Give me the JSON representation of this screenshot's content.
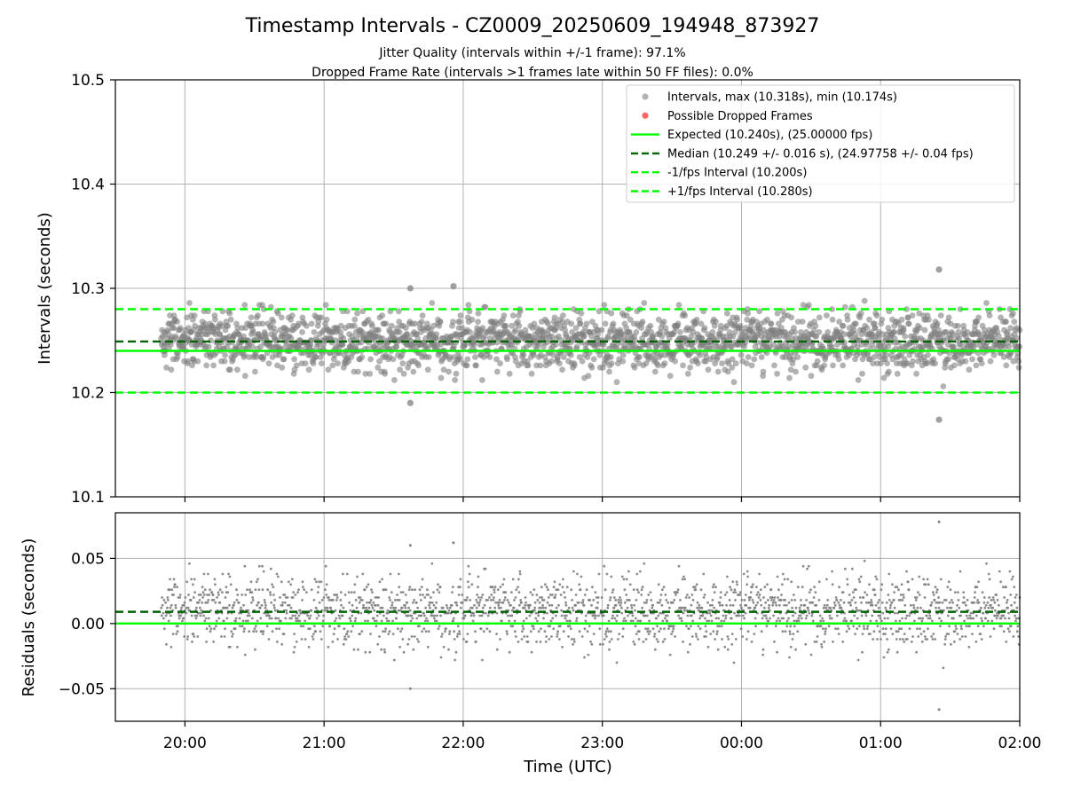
{
  "chart_data": [
    {
      "type": "scatter",
      "title": "Timestamp Intervals - CZ0009_20250609_194948_873927",
      "subtitle_lines": [
        "Jitter Quality (intervals within +/-1 frame): 97.1%",
        "Dropped Frame Rate (intervals >1 frames late within 50 FF files): 0.0%"
      ],
      "ylabel": "Intervals (seconds)",
      "xlabel": "",
      "ylim": [
        10.1,
        10.5
      ],
      "yticks": [
        10.1,
        10.2,
        10.3,
        10.4,
        10.5
      ],
      "ytick_labels": [
        "10.1",
        "10.2",
        "10.3",
        "10.4",
        "10.5"
      ],
      "xlim_hours": [
        19.5,
        26.0
      ],
      "xticks_hours": [
        20,
        21,
        22,
        23,
        24,
        25,
        26
      ],
      "xtick_labels": [
        "20:00",
        "21:00",
        "22:00",
        "23:00",
        "00:00",
        "01:00",
        "02:00"
      ],
      "grid": true,
      "legend_position": "top-right",
      "legend": [
        {
          "label": "Intervals, max (10.318s), min (10.174s)",
          "marker": "circle",
          "color": "#808080"
        },
        {
          "label": "Possible Dropped Frames",
          "marker": "circle",
          "color": "#ff0000"
        },
        {
          "label": "Expected (10.240s), (25.00000 fps)",
          "marker": "solid-line",
          "color": "#00ff00"
        },
        {
          "label": "Median (10.249 +/- 0.016 s), (24.97758 +/- 0.04 fps)",
          "marker": "dashed-line",
          "color": "#006400"
        },
        {
          "label": "-1/fps Interval (10.200s)",
          "marker": "dashed-line",
          "color": "#00ff00"
        },
        {
          "label": "+1/fps Interval (10.280s)",
          "marker": "dashed-line",
          "color": "#00ff00"
        }
      ],
      "reference_lines": {
        "expected": 10.24,
        "median": 10.249,
        "minus_one_frame": 10.2,
        "plus_one_frame": 10.28
      },
      "series": [
        {
          "name": "Intervals",
          "data_range_hours": [
            19.83,
            26.0
          ],
          "point_count": 2170,
          "max": 10.318,
          "max_time_hours": 25.42,
          "min": 10.174,
          "min_time_hours": 25.42,
          "median": 10.249,
          "std": 0.016,
          "notable_points": [
            {
              "x": 21.62,
              "y": 10.3
            },
            {
              "x": 21.62,
              "y": 10.19
            },
            {
              "x": 21.93,
              "y": 10.302
            },
            {
              "x": 25.42,
              "y": 10.318
            },
            {
              "x": 25.42,
              "y": 10.174
            }
          ]
        }
      ]
    },
    {
      "type": "scatter",
      "ylabel": "Residuals (seconds)",
      "xlabel": "Time (UTC)",
      "ylim": [
        -0.075,
        0.085
      ],
      "yticks": [
        -0.05,
        0.0,
        0.05
      ],
      "ytick_labels": [
        "−0.05",
        "0.00",
        "0.05"
      ],
      "xlim_hours": [
        19.5,
        26.0
      ],
      "xticks_hours": [
        20,
        21,
        22,
        23,
        24,
        25,
        26
      ],
      "xtick_labels": [
        "20:00",
        "21:00",
        "22:00",
        "23:00",
        "00:00",
        "01:00",
        "02:00"
      ],
      "grid": true,
      "reference_lines": {
        "zero": 0.0,
        "median_residual": 0.009
      },
      "series": [
        {
          "name": "Residuals",
          "max": 0.078,
          "min": -0.066,
          "notable_points": [
            {
              "x": 21.62,
              "y": 0.06
            },
            {
              "x": 21.62,
              "y": -0.05
            },
            {
              "x": 21.93,
              "y": 0.062
            },
            {
              "x": 25.42,
              "y": 0.078
            },
            {
              "x": 25.42,
              "y": -0.066
            }
          ]
        }
      ]
    }
  ],
  "colors": {
    "points": "#808080",
    "dropped": "#ff0000",
    "expected": "#00ff00",
    "median": "#006400",
    "grid": "#b0b0b0"
  }
}
